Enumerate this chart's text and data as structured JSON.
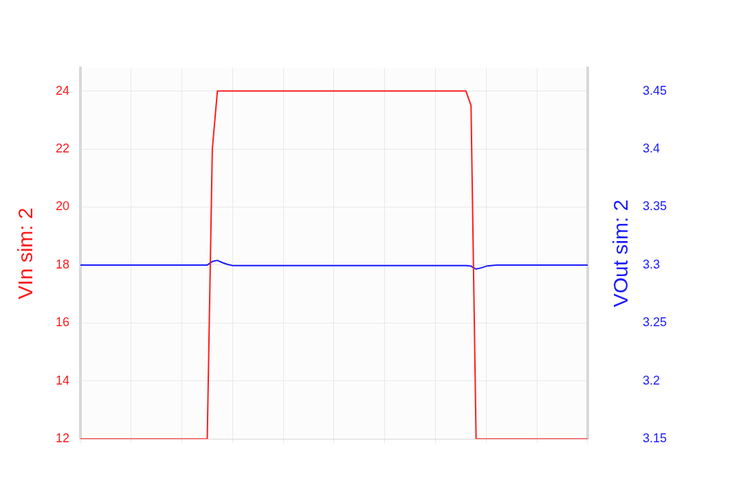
{
  "chart_data": {
    "type": "line",
    "ylabel": "VIn sim: 2",
    "y2label": "VOut sim: 2",
    "categories": [
      null,
      null,
      null,
      null,
      null,
      null,
      null,
      null,
      null,
      null,
      null,
      null,
      null,
      null,
      null,
      null,
      null,
      null,
      null,
      null,
      null,
      null,
      null,
      null,
      null,
      null,
      null,
      null,
      null,
      null,
      null,
      null,
      null,
      null,
      null,
      null,
      null,
      null,
      null,
      null,
      null,
      null,
      null,
      null,
      null,
      null,
      null,
      null,
      null,
      null,
      null,
      null,
      null,
      null,
      null,
      null,
      null,
      null,
      null,
      null,
      null,
      null,
      null,
      null,
      null,
      null,
      null,
      null,
      null,
      null,
      null,
      null,
      null,
      null,
      null,
      null,
      null,
      null,
      null,
      null,
      null,
      null,
      null,
      null,
      null,
      null,
      null,
      null,
      null,
      null,
      null,
      null,
      null,
      null,
      null,
      null,
      null,
      null,
      null,
      null,
      null
    ],
    "series": [
      {
        "color": "#ff1a1a",
        "values": [
          12,
          12,
          12,
          12,
          12,
          12,
          12,
          12,
          12,
          12,
          12,
          12,
          12,
          12,
          12,
          12,
          12,
          12,
          12,
          12,
          12,
          12,
          12,
          12,
          12,
          12,
          22,
          24,
          24,
          24,
          24,
          24,
          24,
          24,
          24,
          24,
          24,
          24,
          24,
          24,
          24,
          24,
          24,
          24,
          24,
          24,
          24,
          24,
          24,
          24,
          24,
          24,
          24,
          24,
          24,
          24,
          24,
          24,
          24,
          24,
          24,
          24,
          24,
          24,
          24,
          24,
          24,
          24,
          24,
          24,
          24,
          24,
          24,
          24,
          24,
          24,
          24,
          23.5,
          12,
          12,
          12,
          12,
          12,
          12,
          12,
          12,
          12,
          12,
          12,
          12,
          12,
          12,
          12,
          12,
          12,
          12,
          12,
          12,
          12,
          12,
          12
        ]
      },
      {
        "color": "#1a1aff",
        "axis": "y2",
        "values": [
          3.3,
          3.3,
          3.3,
          3.3,
          3.3,
          3.3,
          3.3,
          3.3,
          3.3,
          3.3,
          3.3,
          3.3,
          3.3,
          3.3,
          3.3,
          3.3,
          3.3,
          3.3,
          3.3,
          3.3,
          3.3,
          3.3,
          3.3,
          3.3,
          3.3,
          3.3,
          3.303,
          3.304,
          3.302,
          3.3005,
          3.2995,
          3.2995,
          3.2995,
          3.2995,
          3.2995,
          3.2995,
          3.2995,
          3.2995,
          3.2995,
          3.2995,
          3.2995,
          3.2995,
          3.2995,
          3.2995,
          3.2995,
          3.2995,
          3.2995,
          3.2995,
          3.2995,
          3.2995,
          3.2995,
          3.2995,
          3.2995,
          3.2995,
          3.2995,
          3.2995,
          3.2995,
          3.2995,
          3.2995,
          3.2995,
          3.2995,
          3.2995,
          3.2995,
          3.2995,
          3.2995,
          3.2995,
          3.2995,
          3.2995,
          3.2995,
          3.2995,
          3.2995,
          3.2995,
          3.2995,
          3.2995,
          3.2995,
          3.2995,
          3.2995,
          3.299,
          3.2965,
          3.2975,
          3.299,
          3.2995,
          3.3,
          3.3,
          3.3,
          3.3,
          3.3,
          3.3,
          3.3,
          3.3,
          3.3,
          3.3,
          3.3,
          3.3,
          3.3,
          3.3,
          3.3,
          3.3,
          3.3,
          3.3,
          3.3
        ]
      }
    ],
    "ylim": [
      12,
      24.8
    ],
    "yticks": [
      12,
      14,
      16,
      18,
      20,
      22,
      24
    ],
    "y2lim": [
      3.15,
      3.47
    ],
    "y2ticks": [
      3.15,
      3.2,
      3.25,
      3.3,
      3.35,
      3.4,
      3.45
    ],
    "grid": true,
    "legend": false,
    "marker": "none",
    "line_style": "solid"
  }
}
